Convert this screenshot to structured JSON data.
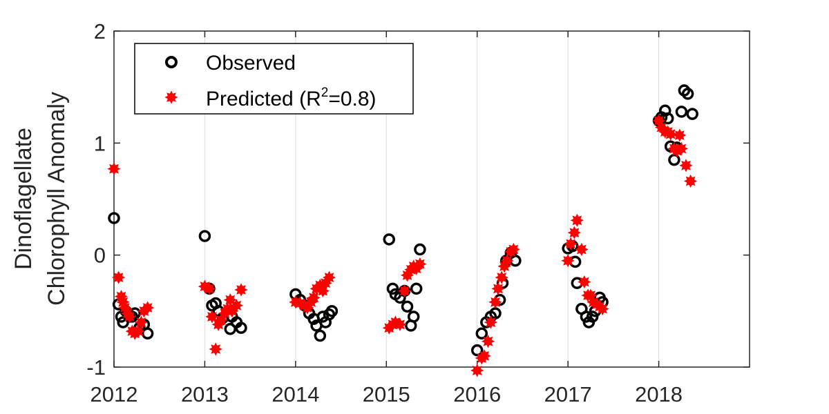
{
  "chart_data": {
    "type": "scatter",
    "ylabel_line1": "Dinoflagellate",
    "ylabel_line2": "Chlorophyll Anomaly",
    "xlabel": "",
    "xlim": [
      2012,
      2019
    ],
    "ylim": [
      -1,
      2
    ],
    "x_ticks": [
      2012,
      2013,
      2014,
      2015,
      2016,
      2017,
      2018
    ],
    "x_tick_labels": [
      "2012",
      "2013",
      "2014",
      "2015",
      "2016",
      "2017",
      "2018"
    ],
    "y_ticks": [
      -1,
      0,
      1,
      2
    ],
    "y_tick_labels": [
      "-1",
      "0",
      "1",
      "2"
    ],
    "grid": "vertical",
    "legend": {
      "position": "top-left",
      "observed_label": "Observed",
      "predicted_label_prefix": "Predicted (R",
      "predicted_label_sup": "2",
      "predicted_label_suffix": "=0.8)"
    },
    "colors": {
      "observed": "#000000",
      "predicted": "#ff0000",
      "grid": "#dddddd",
      "axis": "#262626"
    },
    "series": [
      {
        "name": "Observed",
        "marker": "circle",
        "points": [
          [
            2012.0,
            0.33
          ],
          [
            2012.05,
            -0.44
          ],
          [
            2012.08,
            -0.55
          ],
          [
            2012.1,
            -0.6
          ],
          [
            2012.13,
            -0.5
          ],
          [
            2012.17,
            -0.55
          ],
          [
            2012.2,
            -0.55
          ],
          [
            2012.23,
            -0.52
          ],
          [
            2012.28,
            -0.65
          ],
          [
            2012.33,
            -0.62
          ],
          [
            2012.37,
            -0.7
          ],
          [
            2013.0,
            0.17
          ],
          [
            2013.05,
            -0.3
          ],
          [
            2013.08,
            -0.45
          ],
          [
            2013.12,
            -0.43
          ],
          [
            2013.15,
            -0.5
          ],
          [
            2013.2,
            -0.56
          ],
          [
            2013.28,
            -0.66
          ],
          [
            2013.3,
            -0.55
          ],
          [
            2013.35,
            -0.6
          ],
          [
            2013.4,
            -0.65
          ],
          [
            2014.0,
            -0.35
          ],
          [
            2014.05,
            -0.4
          ],
          [
            2014.1,
            -0.45
          ],
          [
            2014.15,
            -0.52
          ],
          [
            2014.2,
            -0.57
          ],
          [
            2014.23,
            -0.63
          ],
          [
            2014.27,
            -0.72
          ],
          [
            2014.3,
            -0.55
          ],
          [
            2014.33,
            -0.6
          ],
          [
            2014.37,
            -0.53
          ],
          [
            2014.4,
            -0.5
          ],
          [
            2015.03,
            0.14
          ],
          [
            2015.07,
            -0.3
          ],
          [
            2015.1,
            -0.35
          ],
          [
            2015.15,
            -0.38
          ],
          [
            2015.2,
            -0.32
          ],
          [
            2015.23,
            -0.46
          ],
          [
            2015.27,
            -0.63
          ],
          [
            2015.3,
            -0.55
          ],
          [
            2015.33,
            -0.3
          ],
          [
            2015.37,
            0.05
          ],
          [
            2016.0,
            -0.85
          ],
          [
            2016.05,
            -0.7
          ],
          [
            2016.1,
            -0.6
          ],
          [
            2016.15,
            -0.55
          ],
          [
            2016.2,
            -0.52
          ],
          [
            2016.25,
            -0.4
          ],
          [
            2016.28,
            -0.25
          ],
          [
            2016.32,
            -0.05
          ],
          [
            2016.37,
            0.02
          ],
          [
            2016.42,
            -0.05
          ],
          [
            2017.0,
            0.06
          ],
          [
            2017.05,
            0.08
          ],
          [
            2017.08,
            -0.06
          ],
          [
            2017.1,
            -0.25
          ],
          [
            2017.15,
            -0.48
          ],
          [
            2017.2,
            -0.55
          ],
          [
            2017.23,
            -0.6
          ],
          [
            2017.27,
            -0.55
          ],
          [
            2017.3,
            -0.5
          ],
          [
            2017.35,
            -0.38
          ],
          [
            2017.38,
            -0.42
          ],
          [
            2018.0,
            1.2
          ],
          [
            2018.03,
            1.23
          ],
          [
            2018.07,
            1.29
          ],
          [
            2018.1,
            1.22
          ],
          [
            2018.13,
            0.97
          ],
          [
            2018.17,
            0.85
          ],
          [
            2018.2,
            0.96
          ],
          [
            2018.25,
            1.28
          ],
          [
            2018.28,
            1.47
          ],
          [
            2018.32,
            1.44
          ],
          [
            2018.37,
            1.26
          ]
        ]
      },
      {
        "name": "Predicted (R2=0.8)",
        "marker": "star",
        "points": [
          [
            2012.0,
            0.77
          ],
          [
            2012.05,
            -0.2
          ],
          [
            2012.08,
            -0.37
          ],
          [
            2012.1,
            -0.42
          ],
          [
            2012.12,
            -0.47
          ],
          [
            2012.15,
            -0.52
          ],
          [
            2012.17,
            -0.55
          ],
          [
            2012.2,
            -0.68
          ],
          [
            2012.23,
            -0.7
          ],
          [
            2012.27,
            -0.68
          ],
          [
            2012.3,
            -0.6
          ],
          [
            2012.33,
            -0.5
          ],
          [
            2012.37,
            -0.47
          ],
          [
            2013.0,
            -0.28
          ],
          [
            2013.05,
            -0.3
          ],
          [
            2013.08,
            -0.55
          ],
          [
            2013.12,
            -0.84
          ],
          [
            2013.15,
            -0.62
          ],
          [
            2013.18,
            -0.58
          ],
          [
            2013.22,
            -0.52
          ],
          [
            2013.25,
            -0.48
          ],
          [
            2013.28,
            -0.4
          ],
          [
            2013.3,
            -0.5
          ],
          [
            2013.35,
            -0.45
          ],
          [
            2013.4,
            -0.31
          ],
          [
            2014.0,
            -0.42
          ],
          [
            2014.05,
            -0.43
          ],
          [
            2014.1,
            -0.45
          ],
          [
            2014.13,
            -0.47
          ],
          [
            2014.17,
            -0.42
          ],
          [
            2014.2,
            -0.38
          ],
          [
            2014.23,
            -0.3
          ],
          [
            2014.27,
            -0.27
          ],
          [
            2014.3,
            -0.32
          ],
          [
            2014.33,
            -0.25
          ],
          [
            2014.37,
            -0.2
          ],
          [
            2015.03,
            -0.65
          ],
          [
            2015.07,
            -0.62
          ],
          [
            2015.1,
            -0.6
          ],
          [
            2015.15,
            -0.62
          ],
          [
            2015.2,
            -0.32
          ],
          [
            2015.23,
            -0.18
          ],
          [
            2015.27,
            -0.13
          ],
          [
            2015.3,
            -0.1
          ],
          [
            2015.33,
            -0.12
          ],
          [
            2015.37,
            -0.08
          ],
          [
            2016.0,
            -1.03
          ],
          [
            2016.05,
            -0.92
          ],
          [
            2016.08,
            -0.9
          ],
          [
            2016.12,
            -0.77
          ],
          [
            2016.15,
            -0.6
          ],
          [
            2016.2,
            -0.42
          ],
          [
            2016.23,
            -0.3
          ],
          [
            2016.27,
            -0.2
          ],
          [
            2016.3,
            -0.1
          ],
          [
            2016.33,
            -0.05
          ],
          [
            2016.37,
            0.03
          ],
          [
            2016.4,
            0.05
          ],
          [
            2017.0,
            -0.05
          ],
          [
            2017.03,
            0.1
          ],
          [
            2017.07,
            0.2
          ],
          [
            2017.1,
            0.31
          ],
          [
            2017.15,
            0.05
          ],
          [
            2017.18,
            -0.24
          ],
          [
            2017.22,
            -0.36
          ],
          [
            2017.25,
            -0.36
          ],
          [
            2017.28,
            -0.42
          ],
          [
            2017.32,
            -0.44
          ],
          [
            2017.35,
            -0.46
          ],
          [
            2017.38,
            -0.48
          ],
          [
            2018.0,
            1.2
          ],
          [
            2018.03,
            1.14
          ],
          [
            2018.07,
            1.1
          ],
          [
            2018.1,
            1.1
          ],
          [
            2018.13,
            1.08
          ],
          [
            2018.17,
            0.95
          ],
          [
            2018.2,
            0.93
          ],
          [
            2018.23,
            1.07
          ],
          [
            2018.25,
            0.95
          ],
          [
            2018.3,
            0.8
          ],
          [
            2018.35,
            0.66
          ]
        ]
      }
    ]
  }
}
